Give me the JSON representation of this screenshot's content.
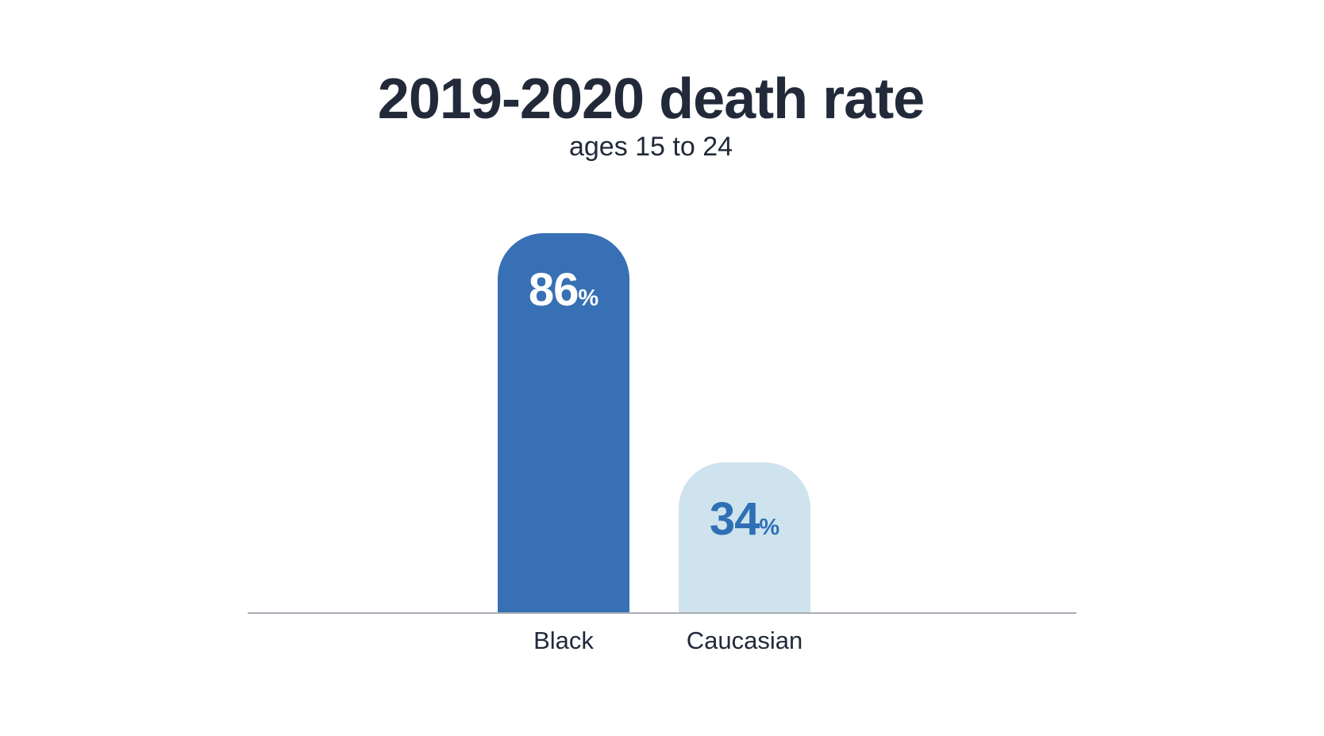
{
  "title": "2019-2020 death rate",
  "subtitle": "ages 15 to 24",
  "colors": {
    "title_text": "#222a3a",
    "axis_line": "#a9afb5",
    "bar_black": "#3770b4",
    "bar_caucasian": "#cee3ed",
    "value_on_dark": "#ffffff",
    "value_on_light": "#2f6fb5"
  },
  "chart_data": {
    "type": "bar",
    "title": "2019-2020 death rate",
    "subtitle": "ages 15 to 24",
    "categories": [
      "Black",
      "Caucasian"
    ],
    "values": [
      86,
      34
    ],
    "unit": "%",
    "ylim": [
      0,
      100
    ],
    "grid": false,
    "legend": "none",
    "bar_colors": [
      "#3770b4",
      "#cee3ed"
    ],
    "value_label_colors": [
      "#ffffff",
      "#2f6fb5"
    ]
  }
}
